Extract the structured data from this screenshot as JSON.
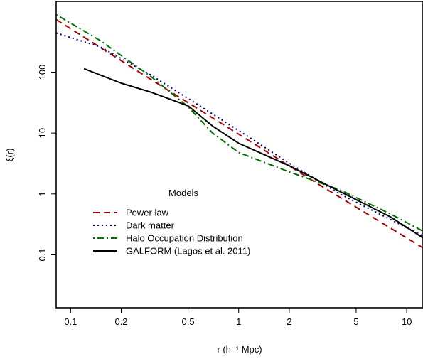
{
  "chart_data": {
    "type": "line",
    "xlabel": "r (h⁻¹ Mpc)",
    "ylabel": "ξ(r)",
    "xscale": "log",
    "yscale": "log",
    "xlim": [
      0.082,
      12.5
    ],
    "ylim": [
      0.0135,
      1450
    ],
    "x_ticks": [
      {
        "value": 0.1,
        "label": "0.1"
      },
      {
        "value": 0.2,
        "label": "0.2"
      },
      {
        "value": 0.5,
        "label": "0.5"
      },
      {
        "value": 1,
        "label": "1"
      },
      {
        "value": 2,
        "label": "2"
      },
      {
        "value": 5,
        "label": "5"
      },
      {
        "value": 10,
        "label": "10"
      }
    ],
    "y_ticks": [
      {
        "value": 0.1,
        "label": "0.1"
      },
      {
        "value": 1,
        "label": "1"
      },
      {
        "value": 10,
        "label": "10"
      },
      {
        "value": 100,
        "label": "100"
      }
    ],
    "grid": false,
    "legend": {
      "title": "Models",
      "position": "bottom-left"
    },
    "series": [
      {
        "name": "Power law",
        "color": "#aa0000",
        "dash": "dashed",
        "x": [
          0.082,
          0.3,
          1,
          3,
          12.5
        ],
        "y": [
          730,
          76,
          9.6,
          1.43,
          0.13
        ]
      },
      {
        "name": "Dark matter",
        "color": "#00008b",
        "dash": "dotted",
        "x": [
          0.082,
          0.15,
          0.3,
          0.5,
          1,
          2,
          4,
          8,
          12.5
        ],
        "y": [
          440,
          260,
          90,
          37,
          11,
          3.2,
          1.0,
          0.38,
          0.205
        ]
      },
      {
        "name": "Halo Occupation Distribution",
        "color": "#007000",
        "dash": "dotdash",
        "x": [
          0.082,
          0.15,
          0.3,
          0.5,
          0.7,
          1,
          2,
          4,
          8,
          12.5
        ],
        "y": [
          880,
          330,
          85,
          27,
          10,
          4.8,
          2.3,
          1.17,
          0.47,
          0.245
        ]
      },
      {
        "name": "GALFORM (Lagos et al. 2011)",
        "color": "#000000",
        "dash": "solid",
        "x": [
          0.12,
          0.2,
          0.3,
          0.5,
          0.7,
          1,
          2,
          4,
          8,
          12.5
        ],
        "y": [
          114,
          66,
          47,
          28,
          13,
          6.8,
          2.9,
          1.1,
          0.42,
          0.19
        ]
      }
    ]
  }
}
